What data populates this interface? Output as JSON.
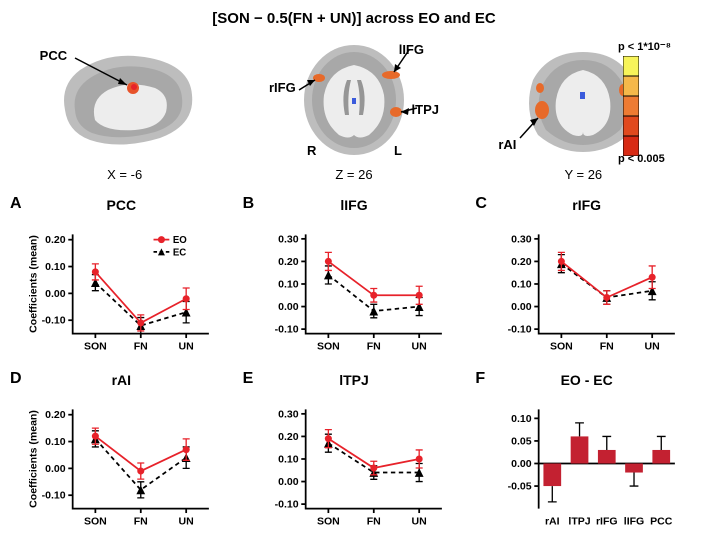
{
  "title": "[SON − 0.5(FN + UN)] across EO and EC",
  "brain_panels": {
    "sagittal": {
      "coord_label": "X = -6",
      "regions": [
        "PCC"
      ]
    },
    "axial": {
      "coord_label": "Z = 26",
      "regions": [
        "lIFG",
        "rIFG",
        "lTPJ"
      ],
      "hemi_labels": {
        "left": "R",
        "right": "L"
      }
    },
    "coronal": {
      "coord_label": "Y = 26",
      "regions": [
        "rAI"
      ]
    }
  },
  "colorbar": {
    "top_label": "p < 1*10⁻⁸",
    "bottom_label": "p < 0.005",
    "colors": [
      "#f7f45a",
      "#f5b84a",
      "#ee7b33",
      "#e1491e",
      "#d82a14"
    ]
  },
  "series_colors": {
    "EO": "#e7222a",
    "EC": "#000000"
  },
  "line_charts": {
    "ylabel": "Coefficients (mean)",
    "x_categories": [
      "SON",
      "FN",
      "UN"
    ],
    "yticks_small": [
      -0.1,
      0,
      0.1,
      0.2
    ],
    "yticks_large": [
      -0.1,
      0,
      0.1,
      0.2,
      0.3
    ],
    "panels": [
      {
        "id": "A",
        "title": "PCC",
        "ylim": [
          -0.15,
          0.22
        ],
        "ticks": "small",
        "EO": [
          0.08,
          -0.11,
          -0.02
        ],
        "EC": [
          0.04,
          -0.12,
          -0.07
        ],
        "EO_err": [
          0.03,
          0.03,
          0.04
        ],
        "EC_err": [
          0.03,
          0.03,
          0.04
        ],
        "show_legend": true
      },
      {
        "id": "B",
        "title": "lIFG",
        "ylim": [
          -0.12,
          0.32
        ],
        "ticks": "large",
        "EO": [
          0.2,
          0.05,
          0.05
        ],
        "EC": [
          0.14,
          -0.02,
          0.0
        ],
        "EO_err": [
          0.04,
          0.03,
          0.04
        ],
        "EC_err": [
          0.04,
          0.03,
          0.04
        ]
      },
      {
        "id": "C",
        "title": "rIFG",
        "ylim": [
          -0.12,
          0.32
        ],
        "ticks": "large",
        "EO": [
          0.2,
          0.04,
          0.13
        ],
        "EC": [
          0.19,
          0.04,
          0.07
        ],
        "EO_err": [
          0.04,
          0.03,
          0.05
        ],
        "EC_err": [
          0.04,
          0.03,
          0.04
        ]
      },
      {
        "id": "D",
        "title": "rAI",
        "ylim": [
          -0.15,
          0.22
        ],
        "ticks": "small",
        "EO": [
          0.12,
          -0.01,
          0.07
        ],
        "EC": [
          0.11,
          -0.08,
          0.04
        ],
        "EO_err": [
          0.03,
          0.03,
          0.04
        ],
        "EC_err": [
          0.03,
          0.03,
          0.04
        ]
      },
      {
        "id": "E",
        "title": "lTPJ",
        "ylim": [
          -0.12,
          0.32
        ],
        "ticks": "large",
        "EO": [
          0.19,
          0.06,
          0.1
        ],
        "EC": [
          0.17,
          0.04,
          0.04
        ],
        "EO_err": [
          0.04,
          0.03,
          0.04
        ],
        "EC_err": [
          0.04,
          0.03,
          0.04
        ]
      }
    ]
  },
  "bar_chart": {
    "id": "F",
    "title": "EO - EC",
    "ylim": [
      -0.1,
      0.12
    ],
    "yticks": [
      -0.05,
      0,
      0.05,
      0.1
    ],
    "categories": [
      "rAI",
      "lTPJ",
      "rIFG",
      "lIFG",
      "PCC"
    ],
    "values": [
      -0.05,
      0.06,
      0.03,
      -0.02,
      0.03
    ],
    "errs": [
      0.035,
      0.03,
      0.03,
      0.03,
      0.03
    ],
    "bar_color": "#c32131"
  },
  "style": {
    "axis_color": "#000000",
    "axis_width": 2,
    "tick_font_size": 12,
    "label_font_size": 12,
    "marker_size": 4,
    "line_width": 2
  }
}
